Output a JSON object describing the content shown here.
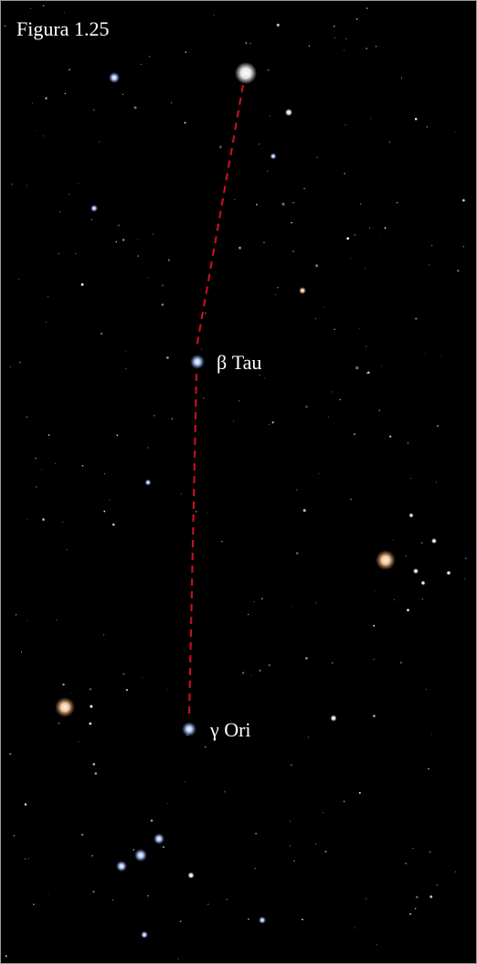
{
  "caption": "Figura 1.25",
  "labels": {
    "beta_tau": "β Tau",
    "gamma_ori": "γ Ori"
  },
  "colors": {
    "sky": "#000000",
    "guide_line": "#c0121c",
    "star_blue": "#aac4ff",
    "star_orange": "#ffcfa0",
    "star_white": "#ffffff"
  }
}
